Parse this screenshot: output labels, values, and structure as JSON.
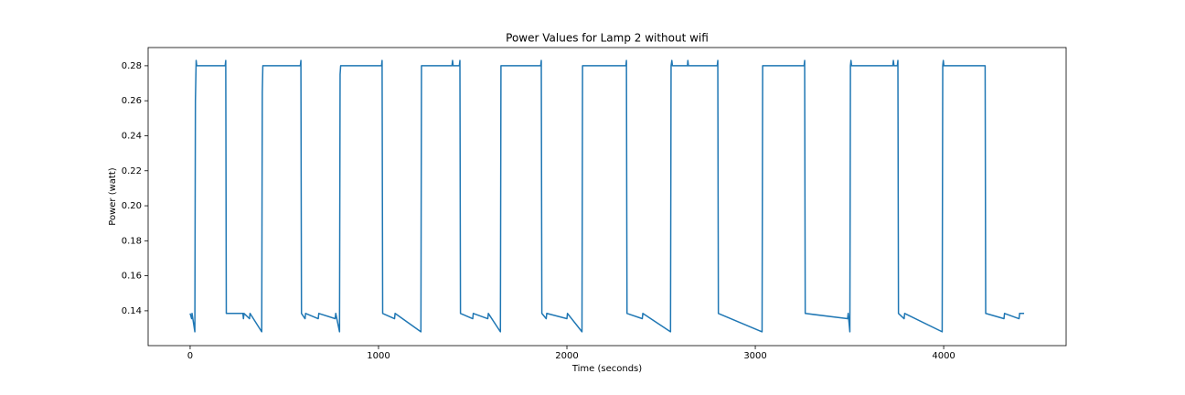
{
  "chart_data": {
    "type": "line",
    "title": "Power Values for Lamp 2 without wifi",
    "x_label": "Time (seconds)",
    "y_label": "Power (watt)",
    "color": "#1f77b4",
    "x": [
      0,
      8,
      10,
      25,
      28,
      32,
      35,
      186,
      189,
      192,
      280,
      283,
      286,
      315,
      318,
      380,
      383,
      386,
      585,
      588,
      591,
      610,
      613,
      680,
      683,
      770,
      773,
      793,
      796,
      799,
      1016,
      1019,
      1022,
      1085,
      1088,
      1225,
      1228,
      1390,
      1393,
      1396,
      1429,
      1432,
      1435,
      1500,
      1503,
      1580,
      1583,
      1647,
      1650,
      1861,
      1864,
      1867,
      1890,
      1893,
      2000,
      2003,
      2080,
      2083,
      2313,
      2316,
      2319,
      2400,
      2403,
      2550,
      2553,
      2557,
      2560,
      2640,
      2642,
      2645,
      2798,
      2801,
      2804,
      3036,
      3039,
      3259,
      3262,
      3265,
      3490,
      3493,
      3502,
      3505,
      3508,
      3511,
      3730,
      3733,
      3736,
      3754,
      3757,
      3760,
      3790,
      3793,
      3992,
      3995,
      3998,
      4001,
      4220,
      4223,
      4320,
      4323,
      4400,
      4403,
      4427
    ],
    "values": [
      0.1385,
      0.1355,
      0.1385,
      0.128,
      0.26,
      0.283,
      0.28,
      0.28,
      0.283,
      0.1385,
      0.1385,
      0.1355,
      0.1385,
      0.1355,
      0.1385,
      0.128,
      0.265,
      0.28,
      0.28,
      0.283,
      0.1385,
      0.1355,
      0.1385,
      0.1355,
      0.1385,
      0.1355,
      0.1385,
      0.128,
      0.275,
      0.28,
      0.28,
      0.283,
      0.1385,
      0.1355,
      0.1385,
      0.128,
      0.28,
      0.28,
      0.283,
      0.28,
      0.28,
      0.283,
      0.1385,
      0.1355,
      0.1385,
      0.1355,
      0.1385,
      0.128,
      0.28,
      0.28,
      0.283,
      0.1385,
      0.1355,
      0.1385,
      0.1355,
      0.1385,
      0.128,
      0.28,
      0.28,
      0.283,
      0.1385,
      0.1355,
      0.1385,
      0.128,
      0.28,
      0.283,
      0.28,
      0.28,
      0.283,
      0.28,
      0.28,
      0.283,
      0.1385,
      0.128,
      0.28,
      0.28,
      0.283,
      0.1385,
      0.1355,
      0.1385,
      0.128,
      0.28,
      0.283,
      0.28,
      0.28,
      0.283,
      0.28,
      0.28,
      0.283,
      0.1385,
      0.1355,
      0.1385,
      0.128,
      0.28,
      0.283,
      0.28,
      0.28,
      0.1385,
      0.1355,
      0.1385,
      0.1355,
      0.1385,
      0.1385
    ],
    "xlim": [
      -223,
      4650
    ],
    "xticks": [
      0,
      1000,
      2000,
      3000,
      4000
    ],
    "ylim": [
      0.1201,
      0.2904
    ],
    "yticks": [
      0.14,
      0.16,
      0.18,
      {
        "value": 0.2,
        "label": "0.20"
      },
      0.22,
      0.24,
      0.26,
      0.28
    ]
  }
}
